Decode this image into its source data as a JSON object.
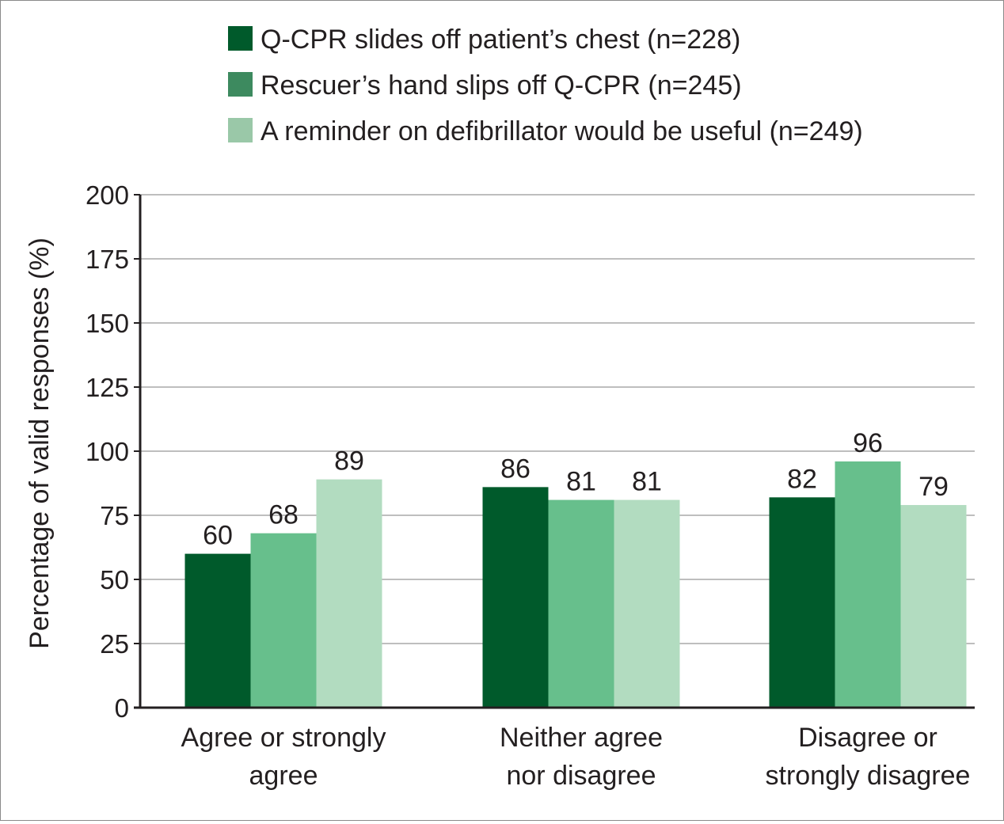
{
  "chart_data": {
    "type": "bar",
    "ylabel": "Percentage of valid responses (%)",
    "ylim": [
      0,
      200
    ],
    "yticks": [
      0,
      25,
      50,
      75,
      100,
      125,
      150,
      175,
      200
    ],
    "grid": true,
    "legend_position": "top",
    "categories": [
      [
        "Agree or strongly",
        "agree"
      ],
      [
        "Neither agree",
        "nor disagree"
      ],
      [
        "Disagree or",
        "strongly disagree"
      ]
    ],
    "series": [
      {
        "name": "Q-CPR slides off patient’s chest (n=228)",
        "legend_color": "#005a2b",
        "bar_color": "#005a2b",
        "values": [
          60,
          86,
          82
        ],
        "labels": [
          "60",
          "86",
          "82"
        ]
      },
      {
        "name": "Rescuer’s hand slips off Q-CPR (n=245)",
        "legend_color": "#3d8a5f",
        "bar_color": "#67bf8c",
        "values": [
          68,
          81,
          96
        ],
        "labels": [
          "68",
          "81",
          "96"
        ]
      },
      {
        "name": "A reminder on defibrillator would be useful (n=249)",
        "legend_color": "#9ac8a8",
        "bar_color": "#b2dcc0",
        "values": [
          89,
          81,
          79
        ],
        "labels": [
          "89",
          "81",
          "79"
        ]
      }
    ]
  }
}
